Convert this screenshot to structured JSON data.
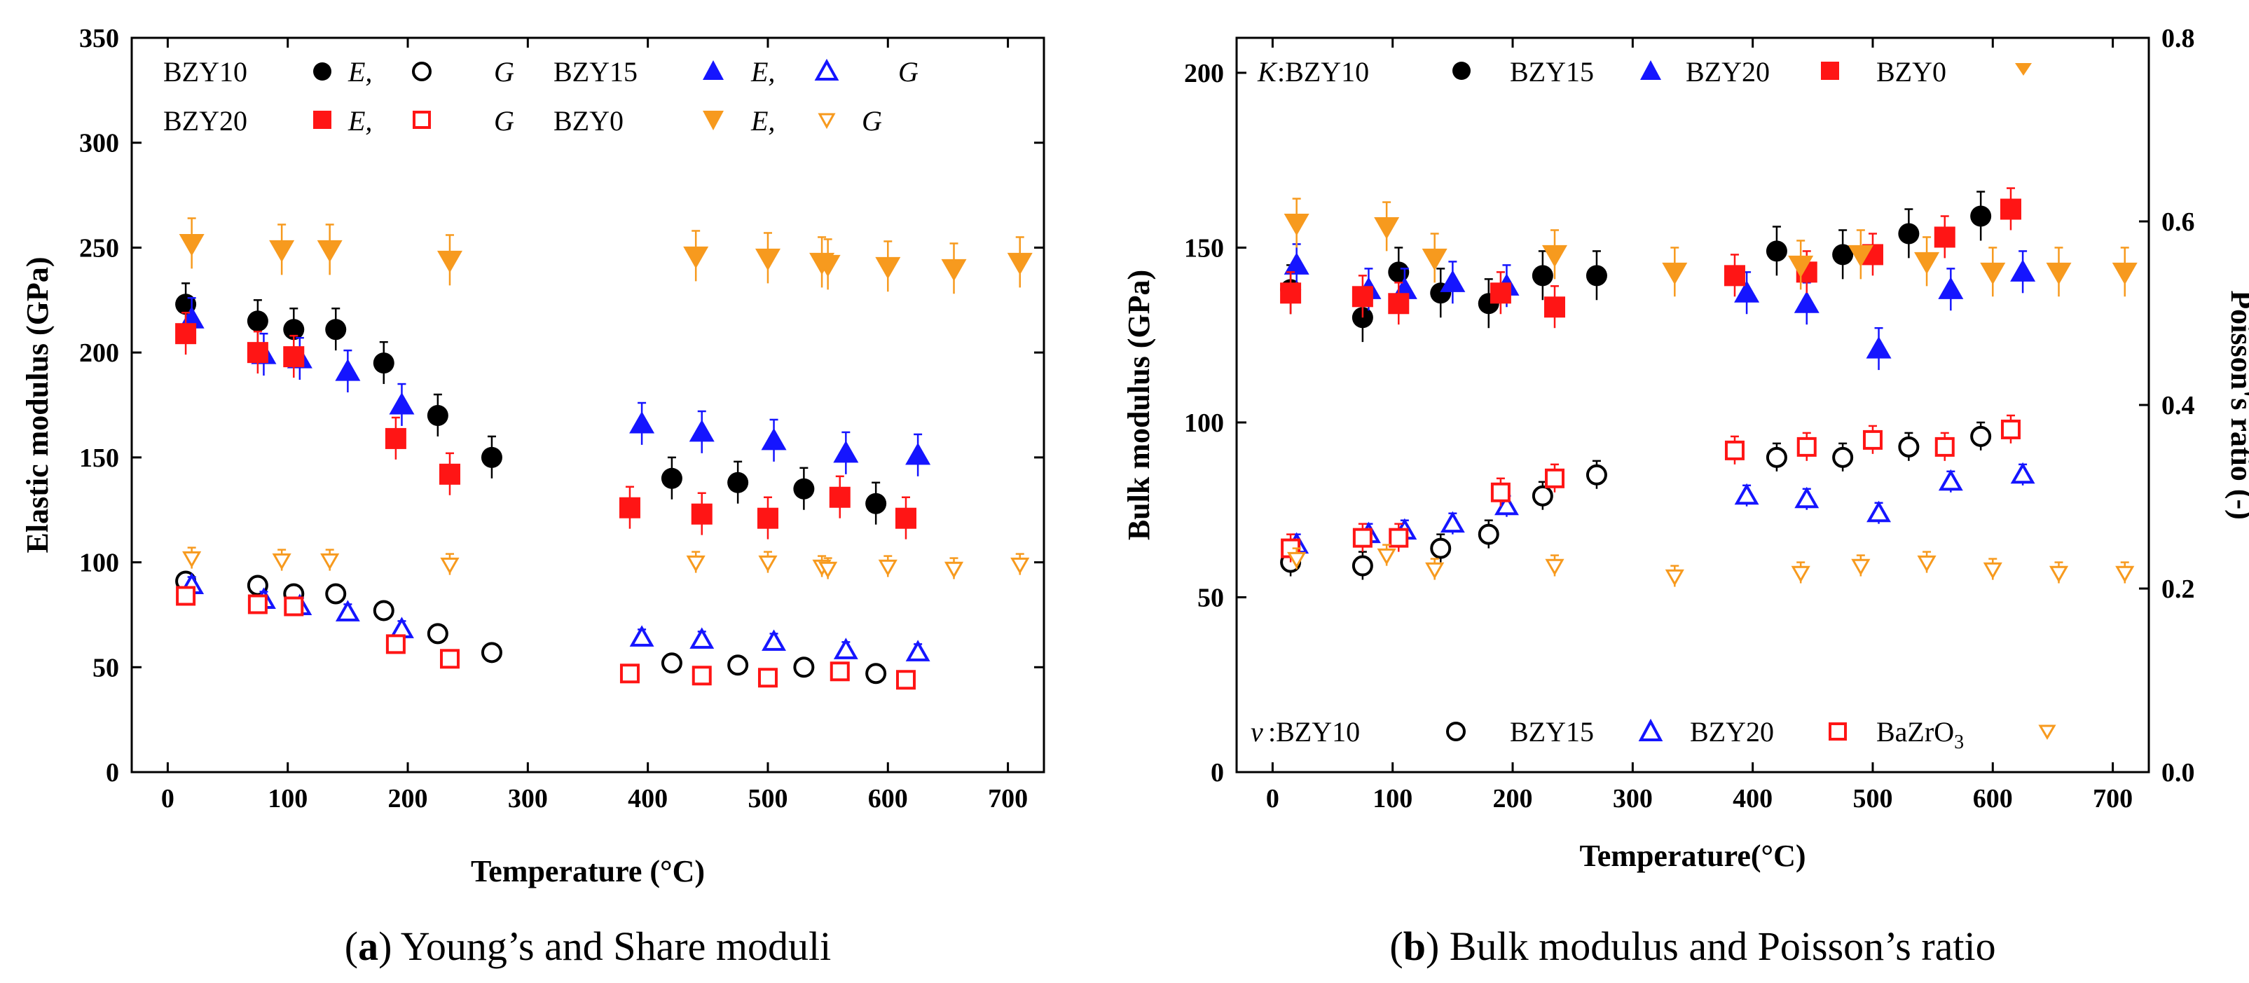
{
  "colors": {
    "black": "#000000",
    "blue": "#1515ff",
    "red": "#ff1515",
    "orange": "#f79a1e"
  },
  "captions": {
    "a_letter": "a",
    "a_text": ") Young’s and Share moduli",
    "b_letter": "b",
    "b_text": ") Bulk modulus and Poisson’s ratio"
  },
  "legend_a": {
    "row1": [
      "BZY10",
      "E,",
      "G",
      "BZY15",
      "E,",
      "G"
    ],
    "row2": [
      "BZY20",
      "E,",
      "G",
      "BZY0",
      "E,",
      "G"
    ]
  },
  "legend_b": {
    "k_prefix": "K",
    "k_labels": [
      ":BZY10",
      "BZY15",
      "BZY20",
      "BZY0"
    ],
    "nu_prefix": "ν",
    "nu_labels": [
      ":BZY10",
      "BZY15",
      "BZY20",
      "BaZrO",
      "3"
    ]
  },
  "chart_data": [
    {
      "id": "a",
      "type": "scatter",
      "title": "Young’s and Share moduli",
      "xlabel": "Temperature (°C)",
      "ylabel": "Elastic modulus (GPa)",
      "xlim": [
        -30,
        730
      ],
      "ylim": [
        0,
        350
      ],
      "xticks": [
        0,
        100,
        200,
        300,
        400,
        500,
        600,
        700
      ],
      "yticks": [
        0,
        50,
        100,
        150,
        200,
        250,
        300,
        350
      ],
      "series": [
        {
          "name": "BZY10 E",
          "color": "black",
          "marker": "circle",
          "filled": true,
          "err": 10,
          "x": [
            15,
            75,
            105,
            140,
            180,
            225,
            270,
            420,
            475,
            530,
            590
          ],
          "y": [
            223,
            215,
            211,
            211,
            195,
            170,
            150,
            140,
            138,
            135,
            128
          ]
        },
        {
          "name": "BZY10 G",
          "color": "black",
          "marker": "circle",
          "filled": false,
          "err": 4,
          "x": [
            15,
            75,
            105,
            140,
            180,
            225,
            270,
            420,
            475,
            530,
            590
          ],
          "y": [
            91,
            89,
            85,
            85,
            77,
            66,
            57,
            52,
            51,
            50,
            47
          ]
        },
        {
          "name": "BZY15 E",
          "color": "blue",
          "marker": "triangle-up",
          "filled": true,
          "err": 10,
          "x": [
            20,
            80,
            110,
            150,
            195,
            395,
            445,
            505,
            565,
            625
          ],
          "y": [
            216,
            199,
            197,
            191,
            175,
            166,
            162,
            158,
            152,
            151
          ]
        },
        {
          "name": "BZY15 G",
          "color": "blue",
          "marker": "triangle-up",
          "filled": false,
          "err": 4,
          "x": [
            20,
            80,
            110,
            150,
            195,
            395,
            445,
            505,
            565,
            625
          ],
          "y": [
            89,
            82,
            79,
            76,
            68,
            64,
            63,
            62,
            58,
            57
          ]
        },
        {
          "name": "BZY20 E",
          "color": "red",
          "marker": "square",
          "filled": true,
          "err": 10,
          "x": [
            15,
            75,
            105,
            190,
            235,
            385,
            445,
            500,
            560,
            615
          ],
          "y": [
            209,
            200,
            198,
            159,
            142,
            126,
            123,
            121,
            131,
            121
          ]
        },
        {
          "name": "BZY20 G",
          "color": "red",
          "marker": "square",
          "filled": false,
          "err": 4,
          "x": [
            15,
            75,
            105,
            190,
            235,
            385,
            445,
            500,
            560,
            615
          ],
          "y": [
            84,
            80,
            79,
            61,
            54,
            47,
            46,
            45,
            48,
            44
          ]
        },
        {
          "name": "BZY0 E",
          "color": "orange",
          "marker": "triangle-down",
          "filled": true,
          "err": 12,
          "x": [
            20,
            95,
            135,
            235,
            440,
            500,
            545,
            550,
            600,
            655,
            710
          ],
          "y": [
            252,
            249,
            249,
            244,
            246,
            245,
            243,
            242,
            241,
            240,
            243
          ]
        },
        {
          "name": "BZY0 G",
          "color": "orange",
          "marker": "triangle-down",
          "filled": false,
          "err": 5,
          "x": [
            20,
            95,
            135,
            235,
            440,
            500,
            545,
            550,
            600,
            655,
            710
          ],
          "y": [
            102,
            101,
            101,
            99,
            100,
            100,
            98,
            97,
            98,
            97,
            99
          ]
        }
      ]
    },
    {
      "id": "b",
      "type": "scatter",
      "title": "Bulk modulus and Poisson’s ratio",
      "xlabel": "Temperature(°C)",
      "ylabel": "Bulk modulus (GPa)",
      "y2label": "Poisson's ratio (-)",
      "xlim": [
        -30,
        730
      ],
      "ylim": [
        0,
        210
      ],
      "y2lim": [
        0,
        0.8
      ],
      "xticks": [
        0,
        100,
        200,
        300,
        400,
        500,
        600,
        700
      ],
      "yticks": [
        0,
        50,
        100,
        150,
        200
      ],
      "y2ticks": [
        "0.0",
        "0.2",
        "0.4",
        "0.6",
        "0.8"
      ],
      "series": [
        {
          "name": "K BZY10",
          "axis": "left",
          "color": "black",
          "marker": "circle",
          "filled": true,
          "err": 7,
          "x": [
            15,
            75,
            105,
            140,
            180,
            225,
            270,
            420,
            475,
            530,
            590
          ],
          "y": [
            138,
            130,
            143,
            137,
            134,
            142,
            142,
            149,
            148,
            154,
            159
          ]
        },
        {
          "name": "K BZY15",
          "axis": "left",
          "color": "blue",
          "marker": "triangle-up",
          "filled": true,
          "err": 6,
          "x": [
            20,
            80,
            110,
            150,
            195,
            395,
            445,
            505,
            565,
            625
          ],
          "y": [
            145,
            138,
            138,
            140,
            139,
            137,
            134,
            121,
            138,
            143
          ]
        },
        {
          "name": "K BZY20",
          "axis": "left",
          "color": "red",
          "marker": "square",
          "filled": true,
          "err": 6,
          "x": [
            15,
            75,
            105,
            190,
            235,
            385,
            445,
            500,
            560,
            615
          ],
          "y": [
            137,
            136,
            134,
            137,
            133,
            142,
            143,
            148,
            153,
            161
          ]
        },
        {
          "name": "K BZY0",
          "axis": "left",
          "color": "orange",
          "marker": "triangle-down",
          "filled": true,
          "err": 7,
          "x": [
            20,
            95,
            135,
            235,
            335,
            440,
            490,
            545,
            600,
            655,
            710
          ],
          "y": [
            157,
            156,
            147,
            148,
            143,
            145,
            148,
            146,
            143,
            143,
            143
          ]
        },
        {
          "name": "ν BZY10",
          "axis": "left",
          "color": "black",
          "marker": "circle",
          "filled": false,
          "err": 4,
          "x": [
            15,
            75,
            140,
            180,
            225,
            270,
            420,
            475,
            530,
            590
          ],
          "y": [
            60,
            59,
            64,
            68,
            79,
            85,
            90,
            90,
            93,
            96
          ]
        },
        {
          "name": "ν BZY15",
          "axis": "left",
          "color": "blue",
          "marker": "triangle-up",
          "filled": false,
          "err": 3,
          "x": [
            20,
            80,
            110,
            150,
            195,
            395,
            445,
            505,
            565,
            625
          ],
          "y": [
            65,
            68,
            69,
            71,
            76,
            79,
            78,
            74,
            83,
            85
          ]
        },
        {
          "name": "ν BaZrO3",
          "axis": "left",
          "color": "red",
          "marker": "square",
          "filled": false,
          "err": 4,
          "x": [
            15,
            75,
            105,
            190,
            235,
            385,
            445,
            500,
            560,
            615
          ],
          "y": [
            64,
            67,
            67,
            80,
            84,
            92,
            93,
            95,
            93,
            98
          ]
        },
        {
          "name": "ν BZY0",
          "axis": "left",
          "color": "orange",
          "marker": "triangle-down",
          "filled": false,
          "err": 3,
          "x": [
            20,
            95,
            135,
            235,
            335,
            440,
            490,
            545,
            600,
            655,
            710
          ],
          "y": [
            61,
            62,
            58,
            59,
            56,
            57,
            59,
            60,
            58,
            57,
            57
          ]
        }
      ]
    }
  ]
}
